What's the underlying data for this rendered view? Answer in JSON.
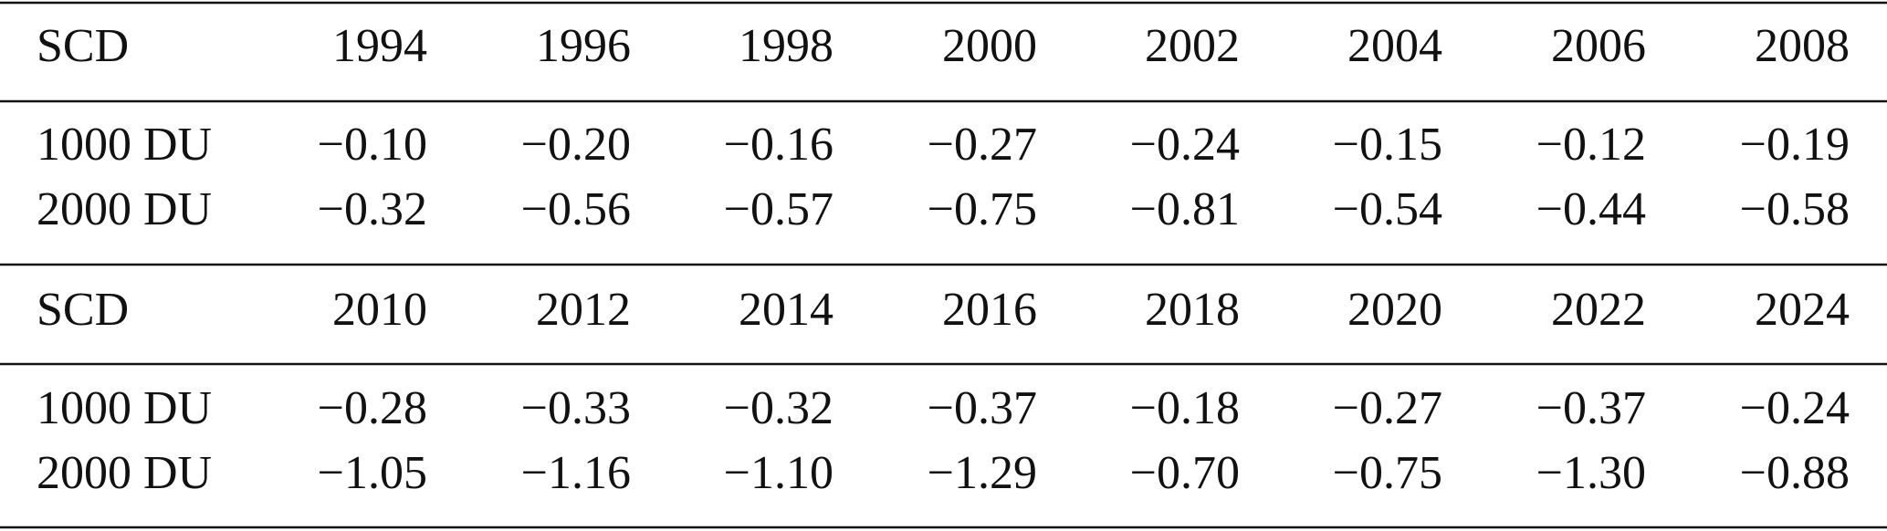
{
  "table": {
    "blocks": [
      {
        "header": [
          "SCD",
          "1994",
          "1996",
          "1998",
          "2000",
          "2002",
          "2004",
          "2006",
          "2008"
        ],
        "rows": [
          [
            "1000 DU",
            "−0.10",
            "−0.20",
            "−0.16",
            "−0.27",
            "−0.24",
            "−0.15",
            "−0.12",
            "−0.19"
          ],
          [
            "2000 DU",
            "−0.32",
            "−0.56",
            "−0.57",
            "−0.75",
            "−0.81",
            "−0.54",
            "−0.44",
            "−0.58"
          ]
        ]
      },
      {
        "header": [
          "SCD",
          "2010",
          "2012",
          "2014",
          "2016",
          "2018",
          "2020",
          "2022",
          "2024"
        ],
        "rows": [
          [
            "1000 DU",
            "−0.28",
            "−0.33",
            "−0.32",
            "−0.37",
            "−0.18",
            "−0.27",
            "−0.37",
            "−0.24"
          ],
          [
            "2000 DU",
            "−1.05",
            "−1.16",
            "−1.10",
            "−1.29",
            "−0.70",
            "−0.75",
            "−1.30",
            "−0.88"
          ]
        ]
      }
    ]
  }
}
